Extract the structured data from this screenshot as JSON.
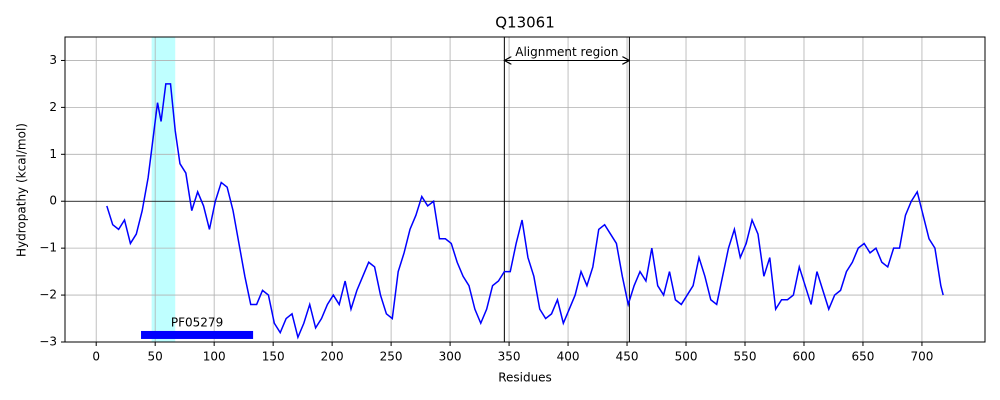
{
  "chart_data": {
    "type": "line",
    "title": "Q13061",
    "x_label": "Residues",
    "y_label": "Hydropathy (kcal/mol)",
    "xlim": [
      -26.45,
      753.45
    ],
    "ylim": [
      -3,
      3.5
    ],
    "xticks": [
      0,
      50,
      100,
      150,
      200,
      250,
      300,
      350,
      400,
      450,
      500,
      550,
      600,
      650,
      700
    ],
    "yticks": [
      {
        "value": -3,
        "label": "−3"
      },
      {
        "value": -2,
        "label": "−2"
      },
      {
        "value": -1,
        "label": "−1"
      },
      0,
      1,
      2,
      3
    ],
    "grid": true,
    "hline": 0,
    "span": {
      "start": 47,
      "end": 67,
      "color": "#bfffff"
    },
    "region": {
      "label": "Alignment region",
      "start": 346,
      "end": 452,
      "y": 3
    },
    "domain": {
      "name": "PF05279",
      "start": 38,
      "end": 133,
      "y": -2.85,
      "color": "#0000ff"
    },
    "series": [
      {
        "name": "Q13061",
        "color": "#0000ff",
        "x": [
          9,
          14,
          19,
          24,
          29,
          34,
          39,
          44,
          49,
          52,
          55,
          59,
          63,
          67,
          71,
          76,
          81,
          86,
          91,
          96,
          101,
          106,
          111,
          116,
          121,
          126,
          131,
          136,
          141,
          146,
          151,
          156,
          161,
          166,
          171,
          176,
          181,
          186,
          191,
          196,
          201,
          206,
          211,
          216,
          221,
          226,
          231,
          236,
          241,
          246,
          251,
          256,
          261,
          266,
          271,
          276,
          281,
          286,
          291,
          296,
          301,
          306,
          311,
          316,
          321,
          326,
          331,
          336,
          341,
          346,
          351,
          356,
          361,
          366,
          371,
          376,
          381,
          386,
          391,
          396,
          401,
          406,
          411,
          416,
          421,
          426,
          431,
          436,
          441,
          446,
          451,
          456,
          461,
          466,
          471,
          476,
          481,
          486,
          491,
          496,
          501,
          506,
          511,
          516,
          521,
          526,
          531,
          536,
          541,
          546,
          551,
          556,
          561,
          566,
          571,
          576,
          581,
          586,
          591,
          596,
          601,
          606,
          611,
          616,
          621,
          626,
          631,
          636,
          641,
          646,
          651,
          656,
          661,
          666,
          671,
          676,
          681,
          686,
          691,
          696,
          701,
          706,
          711,
          716,
          718
        ],
        "values": [
          -0.1,
          -0.5,
          -0.6,
          -0.4,
          -0.9,
          -0.7,
          -0.2,
          0.5,
          1.5,
          2.1,
          1.7,
          2.5,
          2.5,
          1.5,
          0.8,
          0.6,
          -0.2,
          0.2,
          -0.1,
          -0.6,
          0.0,
          0.4,
          0.3,
          -0.2,
          -0.9,
          -1.6,
          -2.2,
          -2.2,
          -1.9,
          -2.0,
          -2.6,
          -2.8,
          -2.5,
          -2.4,
          -2.9,
          -2.6,
          -2.2,
          -2.7,
          -2.5,
          -2.2,
          -2.0,
          -2.2,
          -1.7,
          -2.3,
          -1.9,
          -1.6,
          -1.3,
          -1.4,
          -2.0,
          -2.4,
          -2.5,
          -1.5,
          -1.1,
          -0.6,
          -0.3,
          0.1,
          -0.1,
          0.0,
          -0.8,
          -0.8,
          -0.9,
          -1.3,
          -1.6,
          -1.8,
          -2.3,
          -2.6,
          -2.3,
          -1.8,
          -1.7,
          -1.5,
          -1.5,
          -0.9,
          -0.4,
          -1.2,
          -1.6,
          -2.3,
          -2.5,
          -2.4,
          -2.1,
          -2.6,
          -2.3,
          -2.0,
          -1.5,
          -1.8,
          -1.4,
          -0.6,
          -0.5,
          -0.7,
          -0.9,
          -1.6,
          -2.2,
          -1.8,
          -1.5,
          -1.7,
          -1.0,
          -1.8,
          -2.0,
          -1.5,
          -2.1,
          -2.2,
          -2.0,
          -1.8,
          -1.2,
          -1.6,
          -2.1,
          -2.2,
          -1.6,
          -1.0,
          -0.6,
          -1.2,
          -0.9,
          -0.4,
          -0.7,
          -1.6,
          -1.2,
          -2.3,
          -2.1,
          -2.1,
          -2.0,
          -1.4,
          -1.8,
          -2.2,
          -1.5,
          -1.9,
          -2.3,
          -2.0,
          -1.9,
          -1.5,
          -1.3,
          -1.0,
          -0.9,
          -1.1,
          -1.0,
          -1.3,
          -1.4,
          -1.0,
          -1.0,
          -0.3,
          0.0,
          0.2,
          -0.3,
          -0.8,
          -1.0,
          -1.8,
          -2.0
        ]
      }
    ]
  }
}
